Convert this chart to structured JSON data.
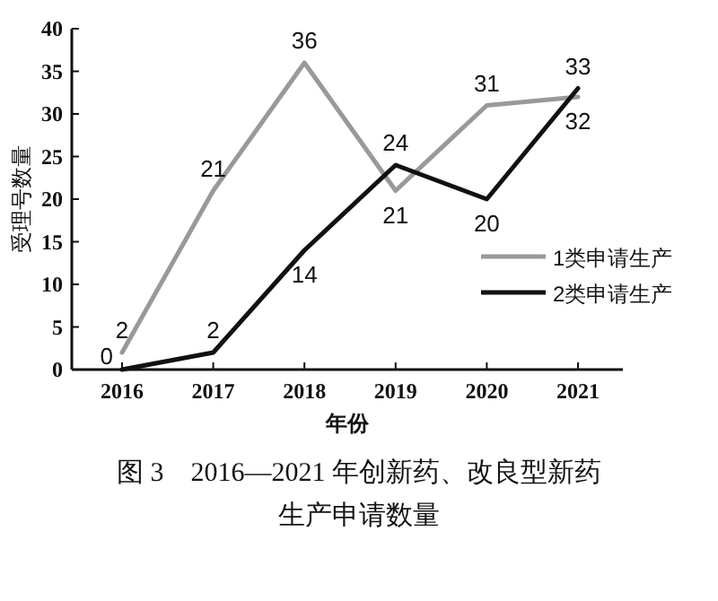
{
  "chart_data": {
    "type": "line",
    "title": "图 3　2016—2021 年创新药、改良型新药生产申请数量",
    "xlabel": "年份",
    "ylabel": "受理号数量",
    "categories": [
      "2016",
      "2017",
      "2018",
      "2019",
      "2020",
      "2021"
    ],
    "series": [
      {
        "name": "1类申请生产",
        "color": "#999999",
        "values": [
          2,
          21,
          36,
          21,
          31,
          32
        ]
      },
      {
        "name": "2类申请生产",
        "color": "#111111",
        "values": [
          0,
          2,
          14,
          24,
          20,
          33
        ]
      }
    ],
    "ylim": [
      0,
      40
    ],
    "yticks": [
      0,
      5,
      10,
      15,
      20,
      25,
      30,
      35,
      40
    ],
    "data_labels": true,
    "legend": "right",
    "marker": "none",
    "line_style": "solid",
    "grid": false
  }
}
